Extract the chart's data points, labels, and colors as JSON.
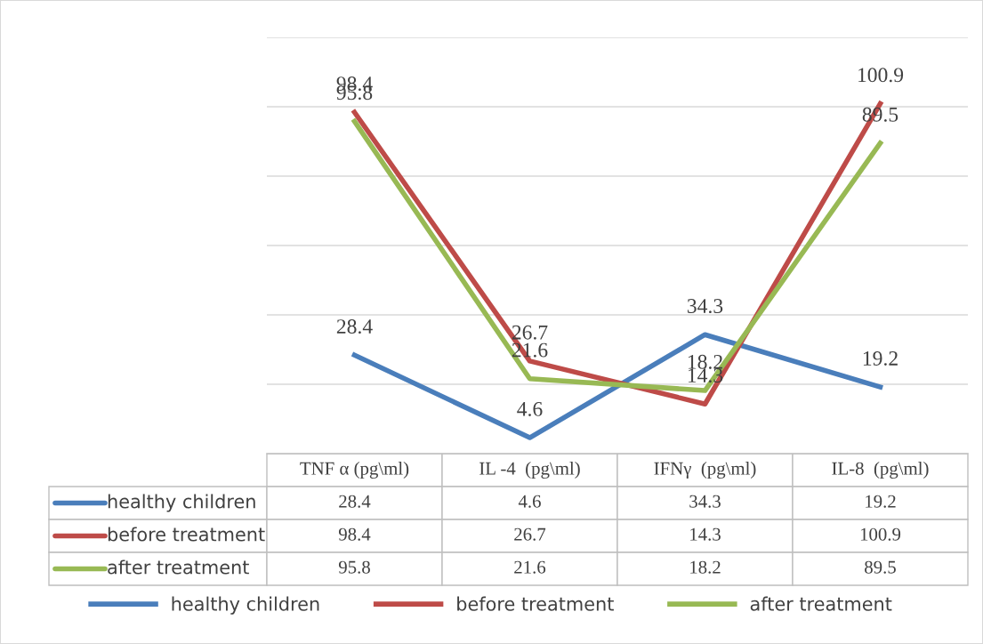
{
  "chart_data": {
    "type": "line",
    "categories": [
      "TNF α (pg\\ml)",
      "IL -4  (pg\\ml)",
      "IFNγ  (pg\\ml)",
      "IL-8  (pg\\ml)"
    ],
    "series": [
      {
        "name": "healthy children",
        "color": "#4a7ebb",
        "values": [
          28.4,
          4.6,
          34.3,
          19.2
        ],
        "value_labels": [
          "28.4",
          "4.6",
          "34.3",
          "19.2"
        ]
      },
      {
        "name": "before treatment",
        "color": "#be4b48",
        "values": [
          98.4,
          26.7,
          14.3,
          100.9
        ],
        "value_labels": [
          "98.4",
          "26.7",
          "14.3",
          "100.9"
        ]
      },
      {
        "name": "after treatment",
        "color": "#98b954",
        "values": [
          95.8,
          21.6,
          18.2,
          89.5
        ],
        "value_labels": [
          "95.8",
          "21.6",
          "18.2",
          "89.5"
        ]
      }
    ],
    "ylim": [
      0,
      120
    ],
    "yticks": [
      {
        "value": 0,
        "label": null
      },
      {
        "value": 20,
        "label": null
      },
      {
        "value": 40,
        "label": null
      },
      {
        "value": 60,
        "label": null
      },
      {
        "value": 80,
        "label": null
      },
      {
        "value": 100,
        "label": null
      },
      {
        "value": 120,
        "label": null
      }
    ],
    "annotations": [
      "28.4",
      "4.6",
      "34.3",
      "19.2",
      "98.4",
      "26.7",
      "14.3",
      "100.9",
      "95.8",
      "21.6",
      "18.2",
      "89.5"
    ],
    "tick_labels": "x",
    "grid": "y",
    "legend": "bottom",
    "marker": "none",
    "line_style": "solid"
  }
}
